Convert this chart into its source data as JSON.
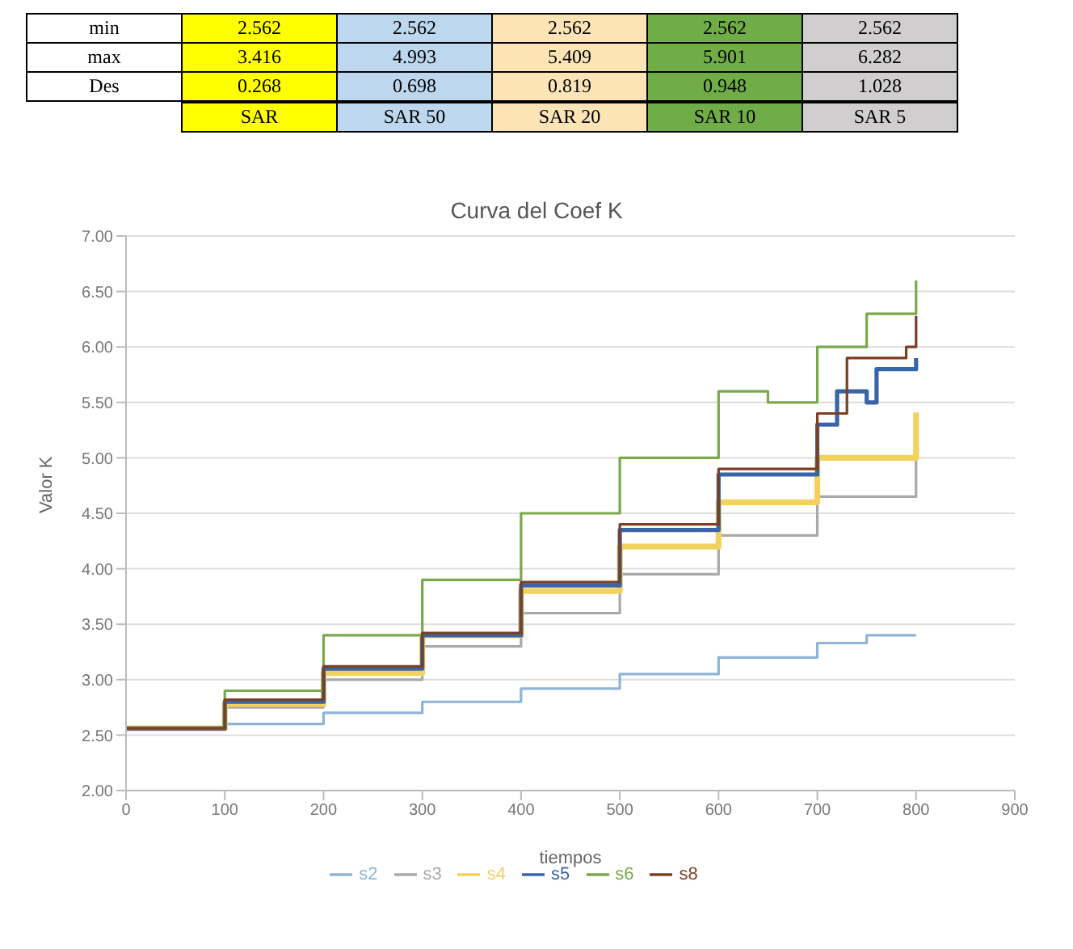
{
  "chart_data": {
    "type": "step",
    "title": "Curva del Coef K",
    "xlabel": "tiempos",
    "ylabel": "Valor K",
    "xlim": [
      0,
      900
    ],
    "xticks": [
      0,
      100,
      200,
      300,
      400,
      500,
      600,
      700,
      800,
      900
    ],
    "ylim": [
      2,
      7
    ],
    "yticks": [
      {
        "value": 2,
        "label": "2.00"
      },
      {
        "value": 2.5,
        "label": "2.50"
      },
      {
        "value": 3,
        "label": "3.00"
      },
      {
        "value": 3.5,
        "label": "3.50"
      },
      {
        "value": 4,
        "label": "4.00"
      },
      {
        "value": 4.5,
        "label": "4.50"
      },
      {
        "value": 5,
        "label": "5.00"
      },
      {
        "value": 5.5,
        "label": "5.50"
      },
      {
        "value": 6,
        "label": "6.00"
      },
      {
        "value": 6.5,
        "label": "6.50"
      },
      {
        "value": 7,
        "label": "7.00"
      }
    ],
    "grid": "y",
    "legend": "bottom",
    "marker": "none",
    "line_style": "solid",
    "series": [
      {
        "name": "s2",
        "color": "#8fb4d8",
        "x": [
          0,
          100,
          200,
          300,
          400,
          500,
          600,
          700,
          750,
          800
        ],
        "values": [
          2.56,
          2.6,
          2.7,
          2.8,
          2.92,
          3.05,
          3.2,
          3.33,
          3.4,
          3.4
        ]
      },
      {
        "name": "s3",
        "color": "#a9a9a9",
        "x": [
          0,
          100,
          200,
          300,
          400,
          500,
          600,
          700,
          800
        ],
        "values": [
          2.56,
          2.75,
          3.0,
          3.3,
          3.6,
          3.95,
          4.3,
          4.65,
          4.99
        ]
      },
      {
        "name": "s4",
        "color": "#f2d25c",
        "x": [
          0,
          100,
          200,
          300,
          400,
          500,
          600,
          700,
          800
        ],
        "values": [
          2.56,
          2.78,
          3.06,
          3.4,
          3.8,
          4.2,
          4.6,
          5.0,
          5.41
        ]
      },
      {
        "name": "s5",
        "color": "#3a64a8",
        "x": [
          0,
          100,
          200,
          300,
          400,
          500,
          600,
          700,
          720,
          750,
          760,
          800
        ],
        "values": [
          2.56,
          2.8,
          3.1,
          3.4,
          3.85,
          4.35,
          4.85,
          5.3,
          5.6,
          5.5,
          5.8,
          5.9
        ]
      },
      {
        "name": "s6",
        "color": "#78a94a",
        "x": [
          0,
          100,
          200,
          300,
          400,
          500,
          600,
          650,
          700,
          750,
          800
        ],
        "values": [
          2.56,
          2.9,
          3.4,
          3.9,
          4.5,
          5.0,
          5.6,
          5.5,
          6.0,
          6.3,
          6.6
        ]
      },
      {
        "name": "s8",
        "color": "#7b3f22",
        "x": [
          0,
          100,
          200,
          300,
          400,
          500,
          600,
          700,
          730,
          760,
          790,
          800
        ],
        "values": [
          2.56,
          2.82,
          3.12,
          3.42,
          3.88,
          4.4,
          4.9,
          5.4,
          5.9,
          5.9,
          6.0,
          6.28
        ]
      }
    ],
    "annotations": [
      "min",
      "2.562",
      "2.562",
      "2.562",
      "2.562",
      "2.562",
      "max",
      "3.416",
      "4.993",
      "5.409",
      "5.901",
      "6.282",
      "Des",
      "0.268",
      "0.698",
      "0.819",
      "0.948",
      "1.028",
      "SAR",
      "SAR 50",
      "SAR 20",
      "SAR 10",
      "SAR 5"
    ]
  }
}
